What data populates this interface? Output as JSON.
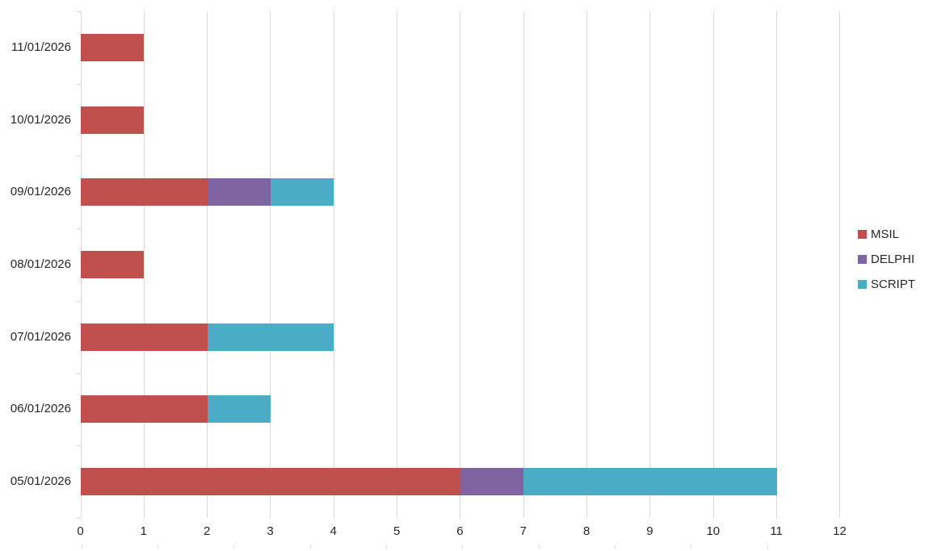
{
  "chart_data": {
    "type": "bar",
    "orientation": "horizontal",
    "stacked": true,
    "title": "",
    "xlabel": "",
    "ylabel": "",
    "categories": [
      "11/01/2026",
      "10/01/2026",
      "09/01/2026",
      "08/01/2026",
      "07/01/2026",
      "06/01/2026",
      "05/01/2026"
    ],
    "series": [
      {
        "name": "MSIL",
        "color": "#C0504D",
        "values": [
          1,
          1,
          2,
          1,
          2,
          2,
          6
        ]
      },
      {
        "name": "DELPHI",
        "color": "#8064A2",
        "values": [
          0,
          0,
          1,
          0,
          0,
          0,
          1
        ]
      },
      {
        "name": "SCRIPT",
        "color": "#4BACC6",
        "values": [
          0,
          0,
          1,
          0,
          2,
          1,
          4
        ]
      }
    ],
    "totals": [
      1,
      1,
      4,
      1,
      4,
      3,
      11
    ],
    "xlim": [
      0,
      12
    ],
    "x_ticks": [
      "0",
      "1",
      "2",
      "3",
      "4",
      "5",
      "6",
      "7",
      "8",
      "9",
      "10",
      "11",
      "12"
    ],
    "grid": "vertical gridlines on",
    "legend_position": "right",
    "legend_entries": [
      "MSIL",
      "DELPHI",
      "SCRIPT"
    ]
  },
  "colors": {
    "msil": "#C0504D",
    "delphi": "#8064A2",
    "script": "#4BACC6",
    "gridline": "#D9D9D9",
    "axis_line": "#D9D9D9",
    "text": "#262626",
    "background": "#FFFFFF"
  }
}
